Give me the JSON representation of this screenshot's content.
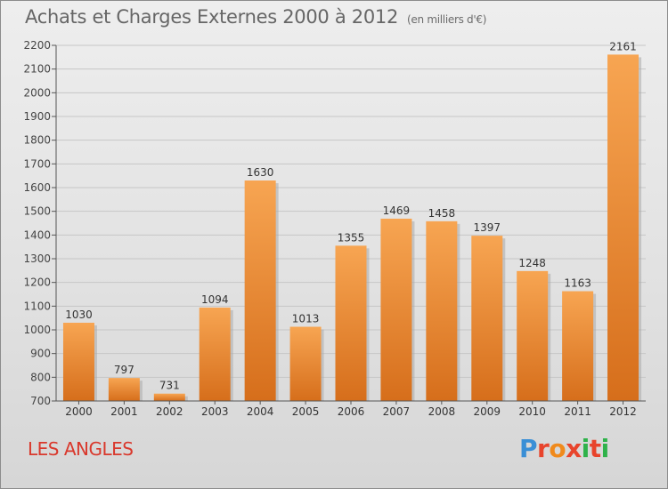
{
  "title": "Achats et Charges Externes 2000 à 2012",
  "unit": "(en milliers d'€)",
  "commune": "LES ANGLES",
  "logo": {
    "text": "Proxiti",
    "colors": [
      "#3a8fd6",
      "#e8442c",
      "#f08a1c",
      "#e8442c",
      "#2fb24a",
      "#e8442c",
      "#2fb24a"
    ]
  },
  "chart_data": {
    "type": "bar",
    "categories": [
      "2000",
      "2001",
      "2002",
      "2003",
      "2004",
      "2005",
      "2006",
      "2007",
      "2008",
      "2009",
      "2010",
      "2011",
      "2012"
    ],
    "values": [
      1030,
      797,
      731,
      1094,
      1630,
      1013,
      1355,
      1469,
      1458,
      1397,
      1248,
      1163,
      2161
    ],
    "data_labels": [
      "1030",
      "797",
      "731",
      "1094",
      "1630",
      "1013",
      "1355",
      "1469",
      "1458",
      "1397",
      "1248",
      "1163",
      "2161"
    ],
    "ylim": [
      700,
      2200
    ],
    "yticks": [
      700,
      800,
      900,
      1000,
      1100,
      1200,
      1300,
      1400,
      1500,
      1600,
      1700,
      1800,
      1900,
      2000,
      2100,
      2200
    ],
    "grid": true,
    "bar_color": "#f0913a",
    "xlabel": "",
    "ylabel": ""
  }
}
